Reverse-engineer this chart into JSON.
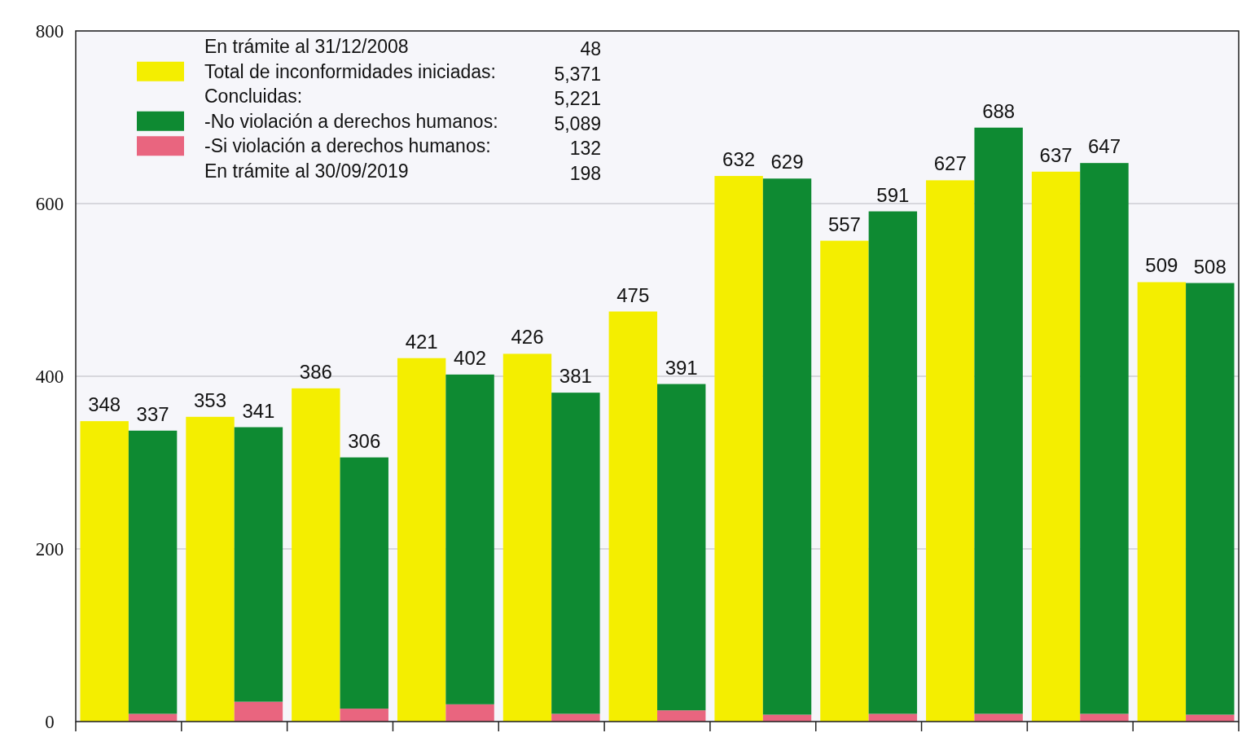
{
  "chart_data": {
    "type": "bar",
    "stacked": true,
    "categories": [
      null,
      null,
      null,
      null,
      null,
      null,
      null,
      null,
      null,
      null,
      null,
      null,
      null,
      null,
      null,
      null,
      null,
      null,
      null,
      null,
      null,
      null
    ],
    "series": [
      {
        "name": "Total de inconformidades iniciadas:",
        "color": "#f4ee00",
        "values": [
          348,
          null,
          353,
          null,
          386,
          null,
          421,
          null,
          426,
          null,
          475,
          null,
          632,
          null,
          557,
          null,
          627,
          null,
          637,
          null,
          509,
          null
        ],
        "value_labels": [
          "348",
          null,
          "353",
          null,
          "386",
          null,
          "421",
          null,
          "426",
          null,
          "475",
          null,
          "632",
          null,
          "557",
          null,
          "627",
          null,
          "637",
          null,
          "509",
          null
        ]
      },
      {
        "name": "-Si violación a derechos humanos:",
        "color": "#e9657f",
        "values": [
          null,
          9,
          null,
          23,
          null,
          15,
          null,
          20,
          null,
          9,
          null,
          13,
          null,
          8,
          null,
          9,
          null,
          9,
          null,
          9,
          null,
          8
        ]
      },
      {
        "name": "-No violación a derechos humanos:",
        "color": "#0e8a32",
        "values": [
          null,
          328,
          null,
          318,
          null,
          291,
          null,
          382,
          null,
          372,
          null,
          378,
          null,
          621,
          null,
          582,
          null,
          679,
          null,
          638,
          null,
          500
        ]
      }
    ],
    "totals": [
      null,
      "337",
      null,
      "341",
      null,
      "306",
      null,
      "402",
      null,
      "381",
      null,
      "391",
      null,
      "629",
      null,
      "591",
      null,
      "688",
      null,
      "647",
      null,
      "508"
    ],
    "ylim": [
      0,
      800
    ],
    "yticks": [
      0,
      200,
      400,
      600,
      800
    ],
    "grid": "y",
    "legend": "top left",
    "tick_labels": "y",
    "annotations": [
      "En trámite al 31/12/2008",
      "48",
      "5,371",
      "Concluidas:",
      "5,221",
      "5,089",
      "132",
      "En trámite al 30/09/2019",
      "198"
    ]
  }
}
